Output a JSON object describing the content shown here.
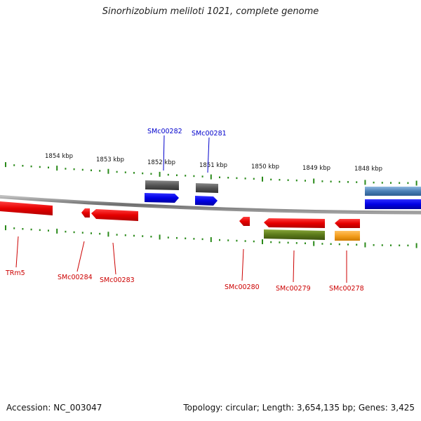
{
  "header": {
    "title": "Sinorhizobium meliloti 1021, complete genome"
  },
  "footer": {
    "accession": "Accession: NC_003047",
    "summary": "Topology: circular; Length: 3,654,135 bp; Genes: 3,425"
  },
  "ruler": {
    "labels": [
      "1854 kbp",
      "1853 kbp",
      "1852 kbp",
      "1851 kbp",
      "1850 kbp",
      "1849 kbp",
      "1848 kbp"
    ]
  },
  "genes": {
    "forward": [
      {
        "name": "SMc00282",
        "color": "#0000e6",
        "gene_color": "#555555"
      },
      {
        "name": "SMc00281",
        "color": "#0000e6",
        "gene_color": "#555555"
      },
      {
        "name": "",
        "color": "#0000e6",
        "gene_color": "#4a7fb5"
      }
    ],
    "reverse": [
      {
        "name": "TRm5",
        "color": "#e60000"
      },
      {
        "name": "SMc00284",
        "color": "#e60000"
      },
      {
        "name": "SMc00283",
        "color": "#e60000"
      },
      {
        "name": "SMc00280",
        "color": "#e60000"
      },
      {
        "name": "SMc00279",
        "color": "#e60000",
        "gene_color": "#5b7a1a"
      },
      {
        "name": "SMc00278",
        "color": "#e60000",
        "gene_color": "#f5a020"
      }
    ]
  },
  "colors": {
    "backbone": "#808080",
    "forward_label": "#0000cc",
    "reverse_label": "#cc0000",
    "tick": "#2a8a1a"
  }
}
